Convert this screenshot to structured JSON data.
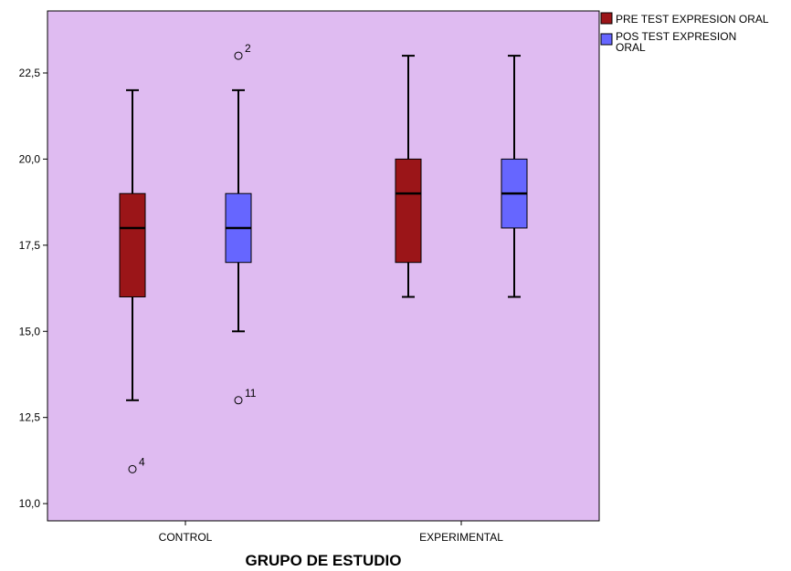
{
  "chart_data": {
    "type": "box",
    "xlabel": "GRUPO DE ESTUDIO",
    "ylabel": "",
    "ylim": [
      9.5,
      24.3
    ],
    "yticks": [
      10,
      12.5,
      15,
      17.5,
      20,
      22.5
    ],
    "ytick_labels": [
      "10,0",
      "12,5",
      "15,0",
      "17,5",
      "20,0",
      "22,5"
    ],
    "categories": [
      "CONTROL",
      "EXPERIMENTAL"
    ],
    "legend_position": "top-right",
    "background_color": "#dfbbf1",
    "series": [
      {
        "name": "PRE TEST EXPRESION ORAL",
        "color": "#9b1518",
        "boxes": [
          {
            "category": "CONTROL",
            "whisker_low": 13,
            "q1": 16,
            "median": 18,
            "q3": 19,
            "whisker_high": 22,
            "outliers": [
              {
                "value": 11,
                "label": "4"
              }
            ]
          },
          {
            "category": "EXPERIMENTAL",
            "whisker_low": 16,
            "q1": 17,
            "median": 19,
            "q3": 20,
            "whisker_high": 23,
            "outliers": []
          }
        ]
      },
      {
        "name": "POS TEST EXPRESION ORAL",
        "color": "#6666ff",
        "boxes": [
          {
            "category": "CONTROL",
            "whisker_low": 15,
            "q1": 17,
            "median": 18,
            "q3": 19,
            "whisker_high": 22,
            "outliers": [
              {
                "value": 23,
                "label": "2"
              },
              {
                "value": 13,
                "label": "11"
              }
            ]
          },
          {
            "category": "EXPERIMENTAL",
            "whisker_low": 16,
            "q1": 18,
            "median": 19,
            "q3": 20,
            "whisker_high": 23,
            "outliers": []
          }
        ]
      }
    ]
  }
}
